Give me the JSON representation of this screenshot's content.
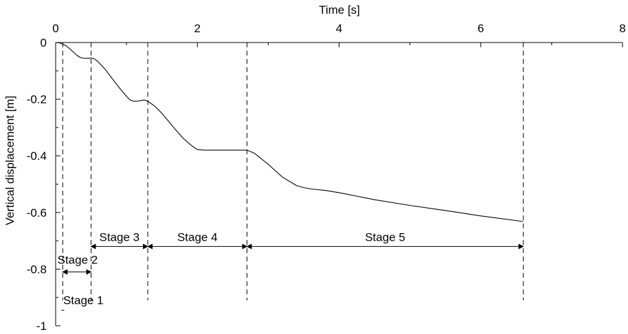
{
  "chart_data": {
    "type": "line",
    "xlabel": "Time [s]",
    "ylabel": "Vertical displacement [m]",
    "xlim": [
      0,
      8
    ],
    "ylim": [
      -1,
      0
    ],
    "x_ticks": [
      0,
      2,
      4,
      6,
      8
    ],
    "x_tick_labels": [
      "0",
      "2",
      "4",
      "6",
      "8"
    ],
    "y_ticks": [
      0,
      -0.2,
      -0.4,
      -0.6,
      -0.8,
      -1
    ],
    "y_tick_labels": [
      "0",
      "-0.2",
      "-0.4",
      "-0.6",
      "-0.8",
      "-1"
    ],
    "x_axis_position": "top",
    "grid": false,
    "series": [
      {
        "x": [
          0,
          0.05,
          0.1,
          0.15,
          0.2,
          0.25,
          0.3,
          0.35,
          0.4,
          0.45,
          0.5,
          0.55,
          0.6,
          0.7,
          0.8,
          0.9,
          1.0,
          1.05,
          1.1,
          1.15,
          1.2,
          1.25,
          1.3,
          1.4,
          1.5,
          1.6,
          1.7,
          1.8,
          1.9,
          1.95,
          2.0,
          2.1,
          2.2,
          2.4,
          2.6,
          2.7,
          2.8,
          3.0,
          3.2,
          3.4,
          3.5,
          3.6,
          3.8,
          4.0,
          4.2,
          4.5,
          5.0,
          5.5,
          6.0,
          6.6
        ],
        "y": [
          0,
          -0.001,
          -0.005,
          -0.012,
          -0.022,
          -0.034,
          -0.045,
          -0.053,
          -0.056,
          -0.056,
          -0.055,
          -0.058,
          -0.068,
          -0.095,
          -0.128,
          -0.16,
          -0.19,
          -0.203,
          -0.207,
          -0.207,
          -0.205,
          -0.203,
          -0.207,
          -0.225,
          -0.25,
          -0.28,
          -0.31,
          -0.338,
          -0.36,
          -0.37,
          -0.378,
          -0.38,
          -0.38,
          -0.38,
          -0.38,
          -0.38,
          -0.39,
          -0.43,
          -0.475,
          -0.505,
          -0.512,
          -0.517,
          -0.522,
          -0.53,
          -0.54,
          -0.555,
          -0.575,
          -0.593,
          -0.612,
          -0.632
        ]
      }
    ],
    "stage_boundaries": [
      0.1,
      0.5,
      1.3,
      2.7,
      6.6
    ],
    "stages": [
      {
        "label": "Stage 1",
        "x_start": 0.08,
        "x_end": 0.12,
        "y": -0.945
      },
      {
        "label": "Stage 2",
        "x_start": 0.1,
        "x_end": 0.5,
        "y": -0.81
      },
      {
        "label": "Stage 3",
        "x_start": 0.5,
        "x_end": 1.3,
        "y": -0.72
      },
      {
        "label": "Stage 4",
        "x_start": 1.3,
        "x_end": 2.7,
        "y": -0.72
      },
      {
        "label": "Stage 5",
        "x_start": 2.7,
        "x_end": 6.6,
        "y": -0.72
      }
    ]
  }
}
